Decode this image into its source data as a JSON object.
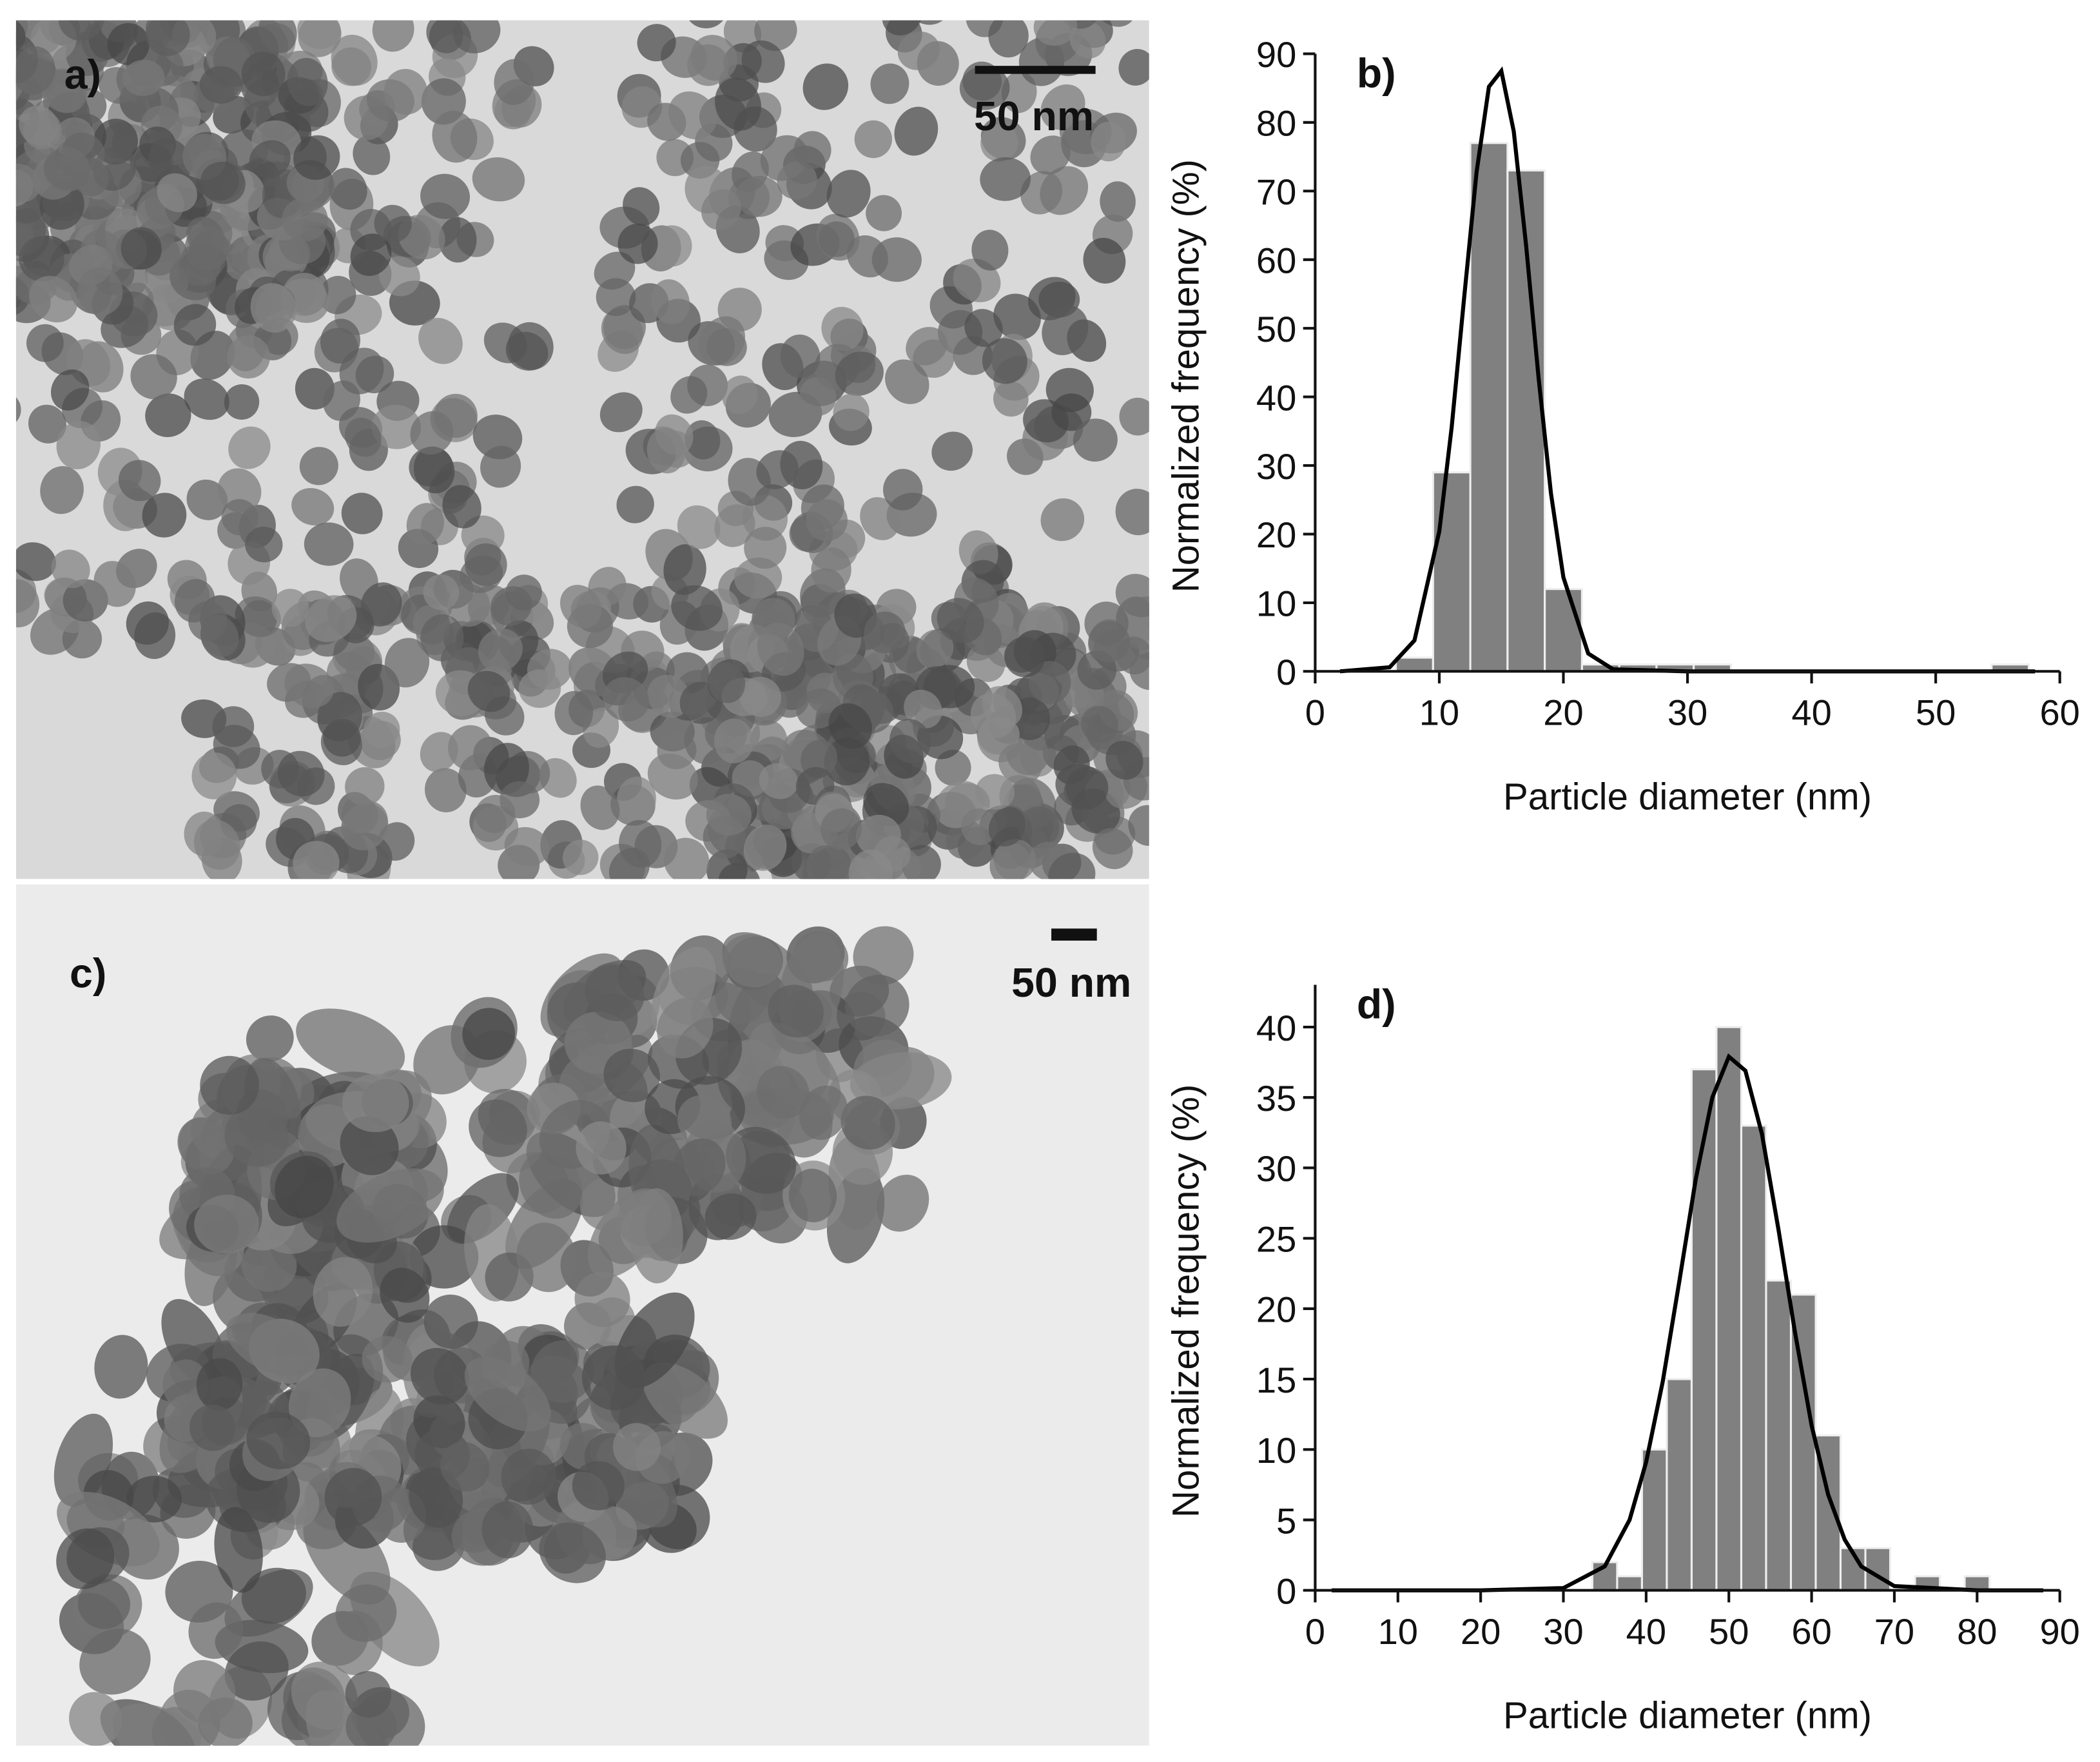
{
  "panels": [
    {
      "label": "a)",
      "scale_bar": "50 nm"
    },
    {
      "label": "c)",
      "scale_bar": "50 nm"
    }
  ],
  "chart_data": [
    {
      "type": "histogram",
      "title": "b)",
      "x_label": "Particle diameter (nm)",
      "y_label": "Normalized frequency (%)",
      "bins": [
        6.5,
        9.5,
        12.5,
        15.5,
        18.5,
        21.5,
        24.5,
        27.5,
        30.5,
        33.5,
        36.5,
        39.5,
        42.5,
        45.5,
        48.5,
        51.5,
        54.5,
        57.5
      ],
      "values": [
        2,
        29,
        77,
        73,
        12,
        1,
        1,
        1,
        1,
        0,
        0,
        0,
        0,
        0,
        0,
        0,
        1
      ],
      "color": "#808080",
      "fit_color": "#000000",
      "fit": {
        "x": [
          2,
          6,
          8,
          10,
          11,
          12,
          13,
          14,
          15,
          16,
          17,
          18,
          19,
          20,
          22,
          24,
          30,
          40,
          58
        ],
        "values": [
          0,
          0.6,
          4.5,
          20.4,
          35.6,
          54.4,
          72.7,
          85.2,
          87.5,
          78.7,
          62,
          42.8,
          25.9,
          13.7,
          2.6,
          0.3,
          0,
          0,
          0
        ]
      },
      "xlim": [
        0,
        60
      ],
      "xticks": [
        0,
        10,
        20,
        30,
        40,
        50,
        60
      ],
      "ylim": [
        0,
        90
      ],
      "yticks": [
        0,
        10,
        20,
        30,
        40,
        50,
        60,
        70,
        80,
        90
      ]
    },
    {
      "type": "histogram",
      "title": "d)",
      "x_label": "Particle diameter (nm)",
      "y_label": "Normalized frequency (%)",
      "bins": [
        33.5,
        36.5,
        39.5,
        42.5,
        45.5,
        48.5,
        51.5,
        54.5,
        57.5,
        60.5,
        63.5,
        66.5,
        69.5,
        72.5,
        75.5,
        78.5,
        81.5
      ],
      "values": [
        2,
        1,
        10,
        15,
        37,
        40,
        33,
        22,
        21,
        11,
        3,
        3,
        0,
        1,
        0,
        1
      ],
      "color": "#808080",
      "fit_color": "#000000",
      "fit": {
        "x": [
          2,
          20,
          30,
          35,
          38,
          40,
          42,
          44,
          46,
          48,
          50,
          52,
          54,
          56,
          58,
          60,
          62,
          64,
          66,
          70,
          80,
          88
        ],
        "values": [
          0,
          0,
          0.16,
          1.7,
          5,
          9.1,
          14.8,
          21.9,
          29.2,
          35,
          37.9,
          36.9,
          32.4,
          25.6,
          18.3,
          11.7,
          6.8,
          3.6,
          1.7,
          0.3,
          0,
          0
        ]
      },
      "xlim": [
        0,
        90
      ],
      "xticks": [
        0,
        10,
        20,
        30,
        40,
        50,
        60,
        70,
        80,
        90
      ],
      "ylim": [
        0,
        43
      ],
      "yticks": [
        0,
        5,
        10,
        15,
        20,
        25,
        30,
        35,
        40
      ]
    }
  ]
}
